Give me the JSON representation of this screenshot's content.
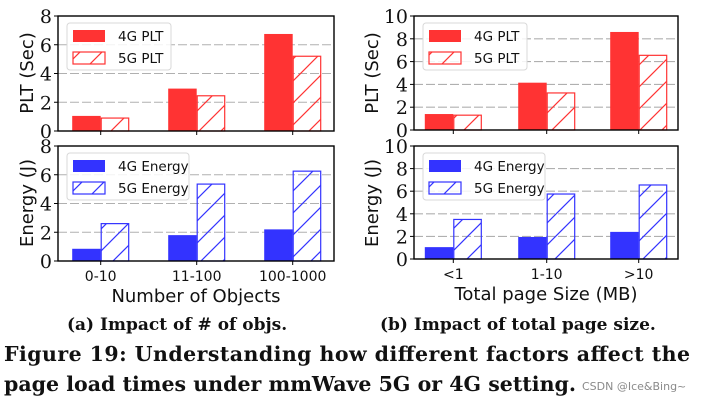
{
  "colors": {
    "plt": "#ff3333",
    "energy": "#3333ff",
    "grid": "#b0b0b0",
    "axis": "#000000"
  },
  "chart_data": [
    {
      "id": "a-plt",
      "type": "bar",
      "categories": [
        "0-10",
        "11-100",
        "100-1000"
      ],
      "series": [
        {
          "name": "4G PLT",
          "style": "solid",
          "values": [
            1.05,
            2.95,
            6.75
          ]
        },
        {
          "name": "5G PLT",
          "style": "hatched",
          "values": [
            0.9,
            2.45,
            5.2
          ]
        }
      ],
      "xlabel": "",
      "ylabel": "PLT (Sec)",
      "ylim": [
        0,
        8
      ],
      "yticks": [
        "0",
        "2",
        "4",
        "6",
        "8"
      ],
      "grid": true,
      "legend": "top-left",
      "color_key": "plt"
    },
    {
      "id": "a-energy",
      "type": "bar",
      "categories": [
        "0-10",
        "11-100",
        "100-1000"
      ],
      "series": [
        {
          "name": "4G Energy",
          "style": "solid",
          "values": [
            0.85,
            1.8,
            2.2
          ]
        },
        {
          "name": "5G Energy",
          "style": "hatched",
          "values": [
            2.6,
            5.35,
            6.25
          ]
        }
      ],
      "xlabel": "Number of Objects",
      "ylabel": "Energy (J)",
      "ylim": [
        0,
        8
      ],
      "yticks": [
        "0",
        "2",
        "4",
        "6",
        "8"
      ],
      "grid": true,
      "legend": "top-left",
      "color_key": "energy"
    },
    {
      "id": "b-plt",
      "type": "bar",
      "categories": [
        "<1",
        "1-10",
        ">10"
      ],
      "series": [
        {
          "name": "4G PLT",
          "style": "solid",
          "values": [
            1.4,
            4.15,
            8.6
          ]
        },
        {
          "name": "5G PLT",
          "style": "hatched",
          "values": [
            1.3,
            3.25,
            6.55
          ]
        }
      ],
      "xlabel": "",
      "ylabel": "PLT (Sec)",
      "ylim": [
        0,
        10
      ],
      "yticks": [
        "0",
        "2",
        "4",
        "6",
        "8",
        "10"
      ],
      "grid": true,
      "legend": "top-left",
      "color_key": "plt"
    },
    {
      "id": "b-energy",
      "type": "bar",
      "categories": [
        "<1",
        "1-10",
        ">10"
      ],
      "series": [
        {
          "name": "4G Energy",
          "style": "solid",
          "values": [
            1.05,
            1.95,
            2.4
          ]
        },
        {
          "name": "5G Energy",
          "style": "hatched",
          "values": [
            3.5,
            5.75,
            6.55
          ]
        }
      ],
      "xlabel": "Total page Size (MB)",
      "ylabel": "Energy (J)",
      "ylim": [
        0,
        10
      ],
      "yticks": [
        "0",
        "2",
        "4",
        "6",
        "8",
        "10"
      ],
      "grid": true,
      "legend": "top-left",
      "color_key": "energy"
    }
  ],
  "captions": {
    "sub_a": "(a) Impact of # of objs.",
    "sub_b": "(b) Impact of total page size.",
    "figure_line1": "Figure 19: Understanding how different factors affect the",
    "figure_line2": "page load times under mmWave 5G or 4G setting."
  },
  "watermark": "CSDN @Ice&Bing~"
}
